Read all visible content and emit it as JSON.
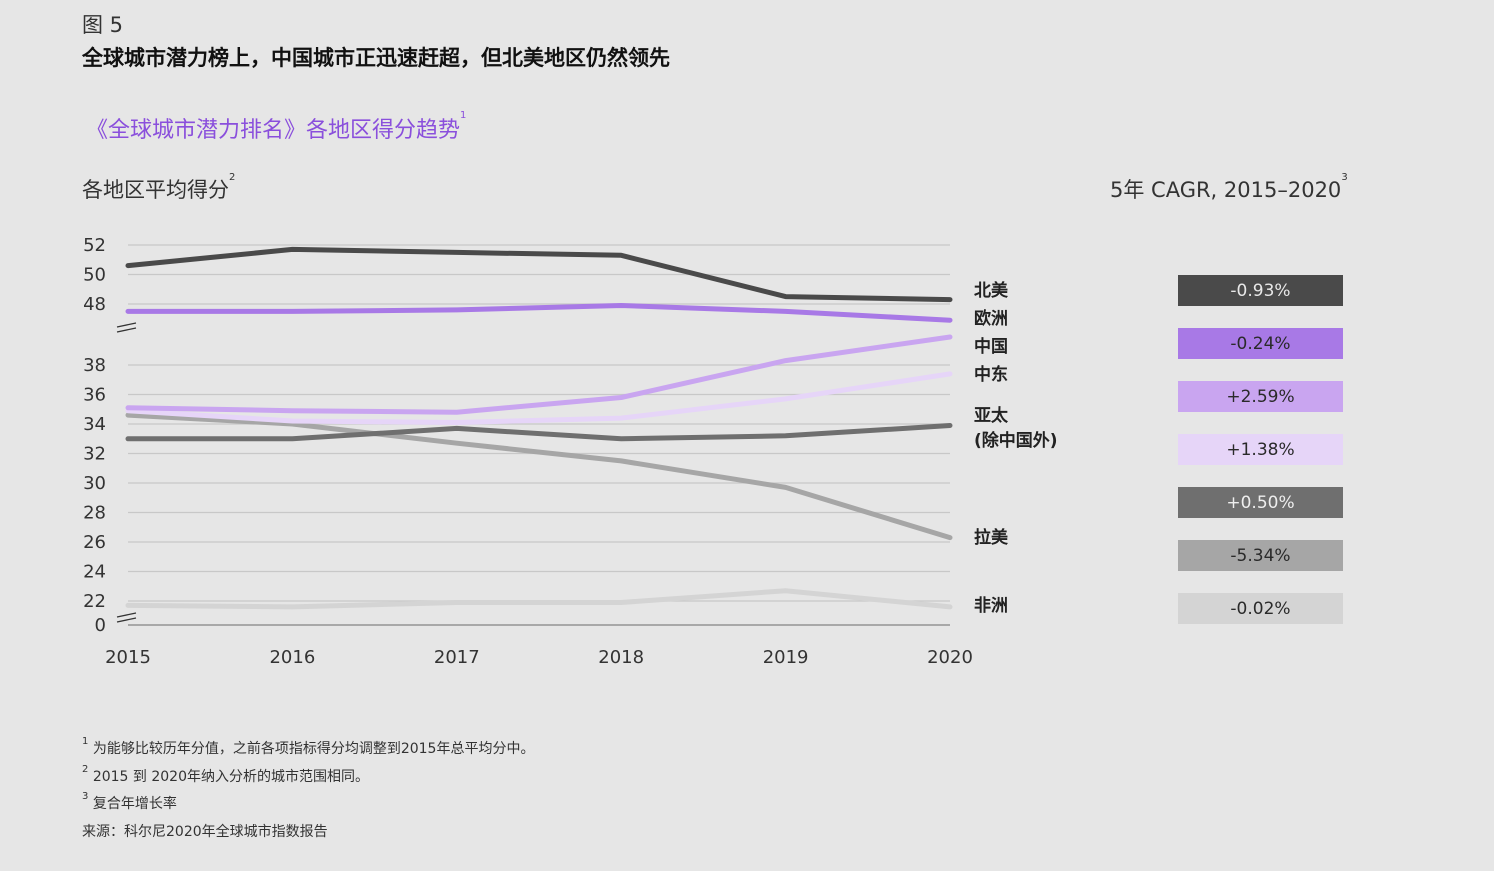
{
  "figure_label": "图 5",
  "title": "全球城市潜力榜上，中国城市正迅速赶超，但北美地区仍然领先",
  "subtitle": "《全球城市潜力排名》各地区得分趋势",
  "subtitle_sup": "1",
  "cagr_title": "5年 CAGR, 2015–2020",
  "cagr_title_sup": "3",
  "footnotes": [
    {
      "sup": "1",
      "text": "为能够比较历年分值，之前各项指标得分均调整到2015年总平均分中。"
    },
    {
      "sup": "2",
      "text": "2015 到 2020年纳入分析的城市范围相同。"
    },
    {
      "sup": "3",
      "text": "复合年增长率"
    },
    {
      "sup": "",
      "text": "来源：科尔尼2020年全球城市指数报告"
    }
  ],
  "chart_data": {
    "type": "line",
    "ylabel": "各地区平均得分",
    "ylabel_sup": "2",
    "x": [
      "2015",
      "2016",
      "2017",
      "2018",
      "2019",
      "2020"
    ],
    "yticks": [
      "52",
      "50",
      "48",
      "38",
      "36",
      "34",
      "32",
      "30",
      "28",
      "26",
      "24",
      "22",
      "0"
    ],
    "ytick_values": [
      52,
      50,
      48,
      38,
      36,
      34,
      32,
      30,
      28,
      26,
      24,
      22,
      0
    ],
    "axis_breaks": [
      [
        40,
        46
      ],
      [
        0,
        21
      ]
    ],
    "grid": true,
    "series": [
      {
        "name": "北美",
        "color": "#4a4a4a",
        "values": [
          50.6,
          51.7,
          51.5,
          51.3,
          48.5,
          48.3
        ],
        "cagr": "-0.93%",
        "cagr_text_color": "#e8e8e8"
      },
      {
        "name": "欧洲",
        "color": "#a879e6",
        "values": [
          47.5,
          47.5,
          47.6,
          47.9,
          47.5,
          46.9
        ],
        "cagr": "-0.24%",
        "cagr_text_color": "#2a2a2a"
      },
      {
        "name": "中国",
        "color": "#c9a5f0",
        "values": [
          35.1,
          34.9,
          34.8,
          35.8,
          38.3,
          39.9
        ],
        "cagr": "+2.59%",
        "cagr_text_color": "#2a2a2a"
      },
      {
        "name": "中东",
        "color": "#e6d5f8",
        "values": [
          34.9,
          34.2,
          34.1,
          34.4,
          35.7,
          37.4
        ],
        "cagr": "+1.38%",
        "cagr_text_color": "#2a2a2a"
      },
      {
        "name": "亚太",
        "name_line2": "(除中国外)",
        "color": "#6f6f6f",
        "values": [
          33.0,
          33.0,
          33.7,
          33.0,
          33.2,
          33.9
        ],
        "cagr": "+0.50%",
        "cagr_text_color": "#eeeeee"
      },
      {
        "name": "拉美",
        "color": "#a6a6a6",
        "values": [
          34.6,
          34.0,
          32.7,
          31.5,
          29.7,
          26.3
        ],
        "cagr": "-5.34%",
        "cagr_text_color": "#2a2a2a"
      },
      {
        "name": "非洲",
        "color": "#d4d4d4",
        "values": [
          21.7,
          21.6,
          21.9,
          21.9,
          22.7,
          21.6
        ],
        "cagr": "-0.02%",
        "cagr_text_color": "#2a2a2a"
      }
    ]
  }
}
